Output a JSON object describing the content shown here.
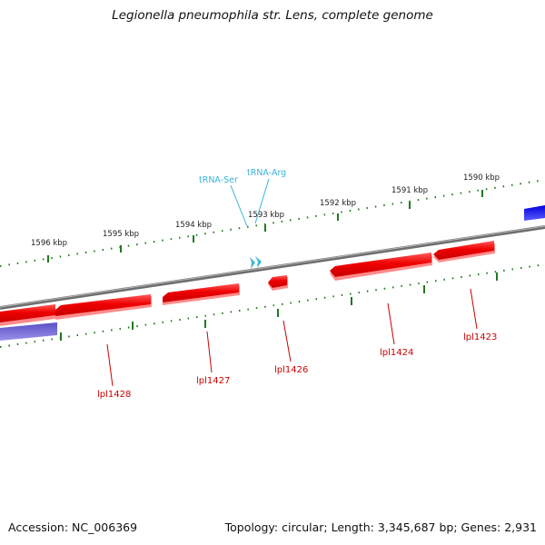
{
  "title": "Legionella pneumophila str. Lens, complete genome",
  "footer": {
    "accession": "Accession: NC_006369",
    "summary": "Topology: circular; Length: 3,345,687 bp; Genes: 2,931"
  },
  "scale_labels": [
    "1596 kbp",
    "1595 kbp",
    "1594 kbp",
    "1593 kbp",
    "1592 kbp",
    "1591 kbp",
    "1590 kbp"
  ],
  "trna_labels": [
    "tRNA-Ser",
    "tRNA-Arg"
  ],
  "gene_labels": [
    "lpl1428",
    "lpl1427",
    "lpl1426",
    "lpl1424",
    "lpl1423"
  ],
  "colors": {
    "backbone": "#7a7a7a",
    "gene": "#ee0000",
    "gene_shadow": "#ff8080",
    "tick": "#1f7a1f",
    "trna": "#3bb3d9",
    "feature_blue": "#1010ee",
    "feature_purple": "#6a5acd"
  }
}
